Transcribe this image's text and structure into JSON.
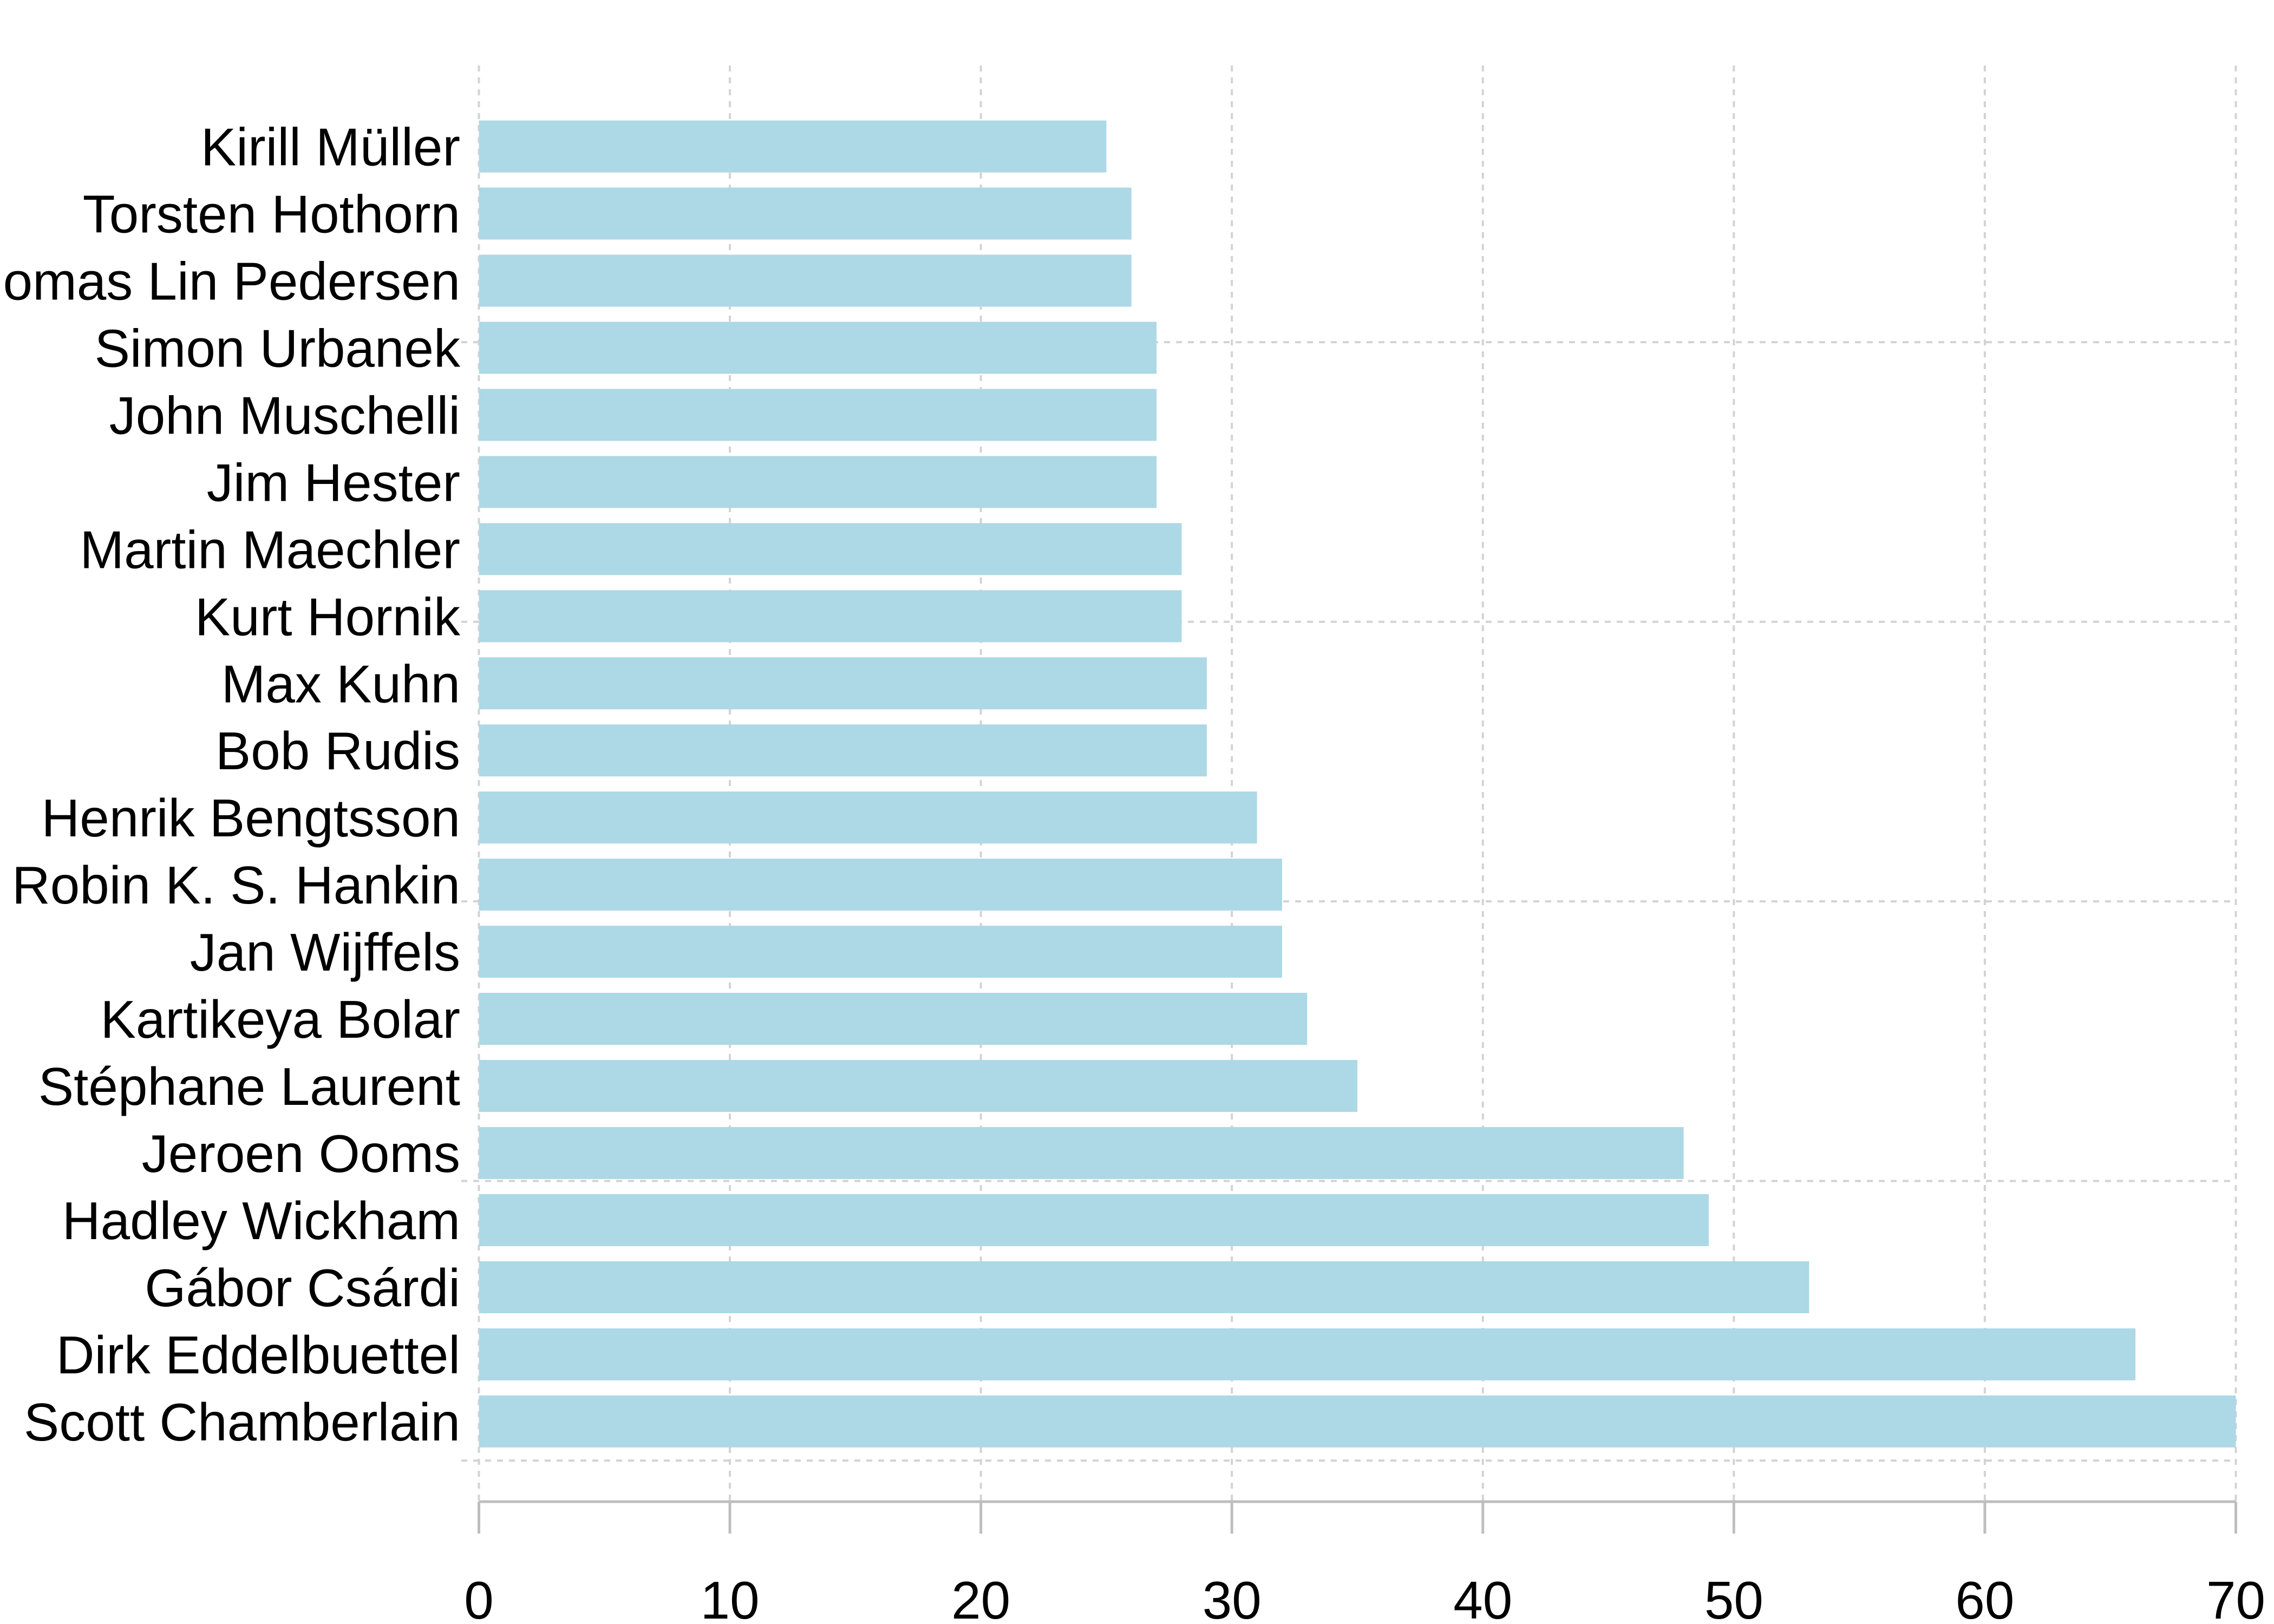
{
  "chart_data": {
    "type": "bar",
    "orientation": "horizontal",
    "categories": [
      "Kirill Müller",
      "Torsten Hothorn",
      "omas Lin Pedersen",
      "Simon Urbanek",
      "John Muschelli",
      "Jim Hester",
      "Martin Maechler",
      "Kurt Hornik",
      "Max Kuhn",
      "Bob Rudis",
      "Henrik Bengtsson",
      "Robin K. S. Hankin",
      "Jan Wijffels",
      "Kartikeya Bolar",
      "Stéphane Laurent",
      "Jeroen Ooms",
      "Hadley Wickham",
      "Gábor Csárdi",
      "Dirk Eddelbuettel",
      "Scott Chamberlain"
    ],
    "values": [
      25,
      26,
      26,
      27,
      27,
      27,
      28,
      28,
      29,
      29,
      31,
      32,
      32,
      33,
      35,
      48,
      49,
      53,
      66,
      70
    ],
    "xlim": [
      0,
      70
    ],
    "xticks": [
      0,
      10,
      20,
      30,
      40,
      50,
      60,
      70
    ],
    "grid": true
  },
  "colors": {
    "bar": "#ADD8E6",
    "grid": "#D3D3D3",
    "axis": "#BEBEBE",
    "text": "#000000"
  }
}
